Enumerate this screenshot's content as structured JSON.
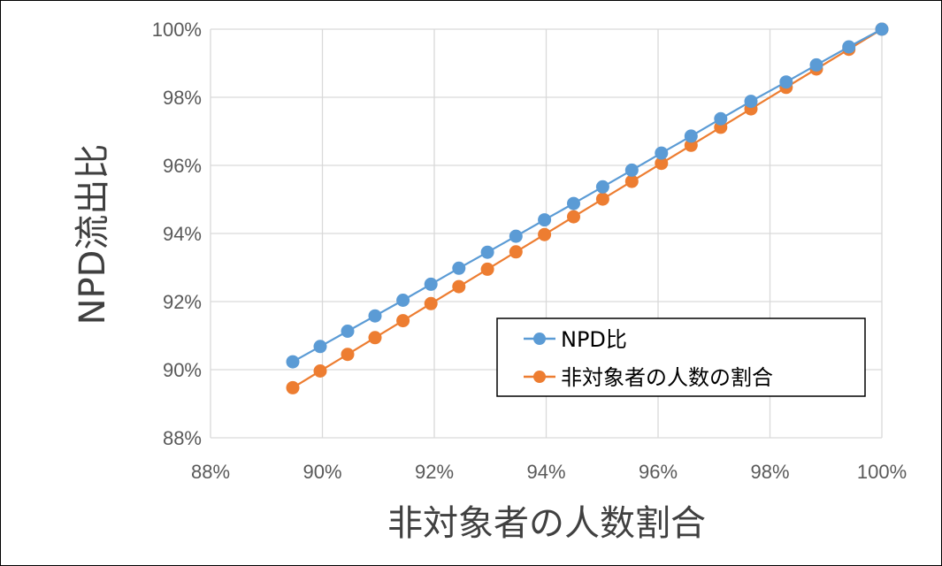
{
  "colors": {
    "series_npd": "#5B9BD5",
    "series_ratio": "#ED7D31",
    "grid": "#D9D9D9",
    "tick_text": "#595959",
    "axis_title": "#404040"
  },
  "chart_data": {
    "type": "line",
    "title": "",
    "xlabel": "非対象者の人数割合",
    "ylabel": "NPD流出比",
    "xlim": [
      0.88,
      1.0
    ],
    "ylim": [
      0.88,
      1.0
    ],
    "x_tick_labels": [
      "88%",
      "90%",
      "92%",
      "94%",
      "96%",
      "98%",
      "100%"
    ],
    "y_tick_labels": [
      "100%",
      "98%",
      "96%",
      "94%",
      "92%",
      "90%",
      "88%"
    ],
    "grid": true,
    "legend_position": "center-right",
    "markers": true,
    "series": [
      {
        "name": "NPD比",
        "color": "#5B9BD5",
        "x": [
          0.8947,
          0.8996,
          0.9045,
          0.9094,
          0.9144,
          0.9194,
          0.9244,
          0.9295,
          0.9346,
          0.9397,
          0.9449,
          0.9501,
          0.9553,
          0.9606,
          0.9659,
          0.9712,
          0.9766,
          0.9829,
          0.9883,
          0.9941,
          1.0
        ],
        "y": [
          0.9023,
          0.9068,
          0.9113,
          0.9158,
          0.9204,
          0.9251,
          0.9298,
          0.9345,
          0.9392,
          0.944,
          0.9488,
          0.9537,
          0.9586,
          0.9636,
          0.9686,
          0.9737,
          0.9788,
          0.9845,
          0.9895,
          0.9948,
          1.0
        ]
      },
      {
        "name": "非対象者の人数の割合",
        "color": "#ED7D31",
        "x": [
          0.8947,
          0.8996,
          0.9045,
          0.9094,
          0.9144,
          0.9194,
          0.9244,
          0.9295,
          0.9346,
          0.9397,
          0.9449,
          0.9501,
          0.9553,
          0.9606,
          0.9659,
          0.9712,
          0.9766,
          0.9829,
          0.9883,
          0.9941,
          1.0
        ],
        "y": [
          0.8947,
          0.8996,
          0.9045,
          0.9094,
          0.9144,
          0.9194,
          0.9244,
          0.9295,
          0.9346,
          0.9397,
          0.9449,
          0.9501,
          0.9553,
          0.9606,
          0.9659,
          0.9712,
          0.9766,
          0.9829,
          0.9883,
          0.9941,
          1.0
        ]
      }
    ]
  }
}
